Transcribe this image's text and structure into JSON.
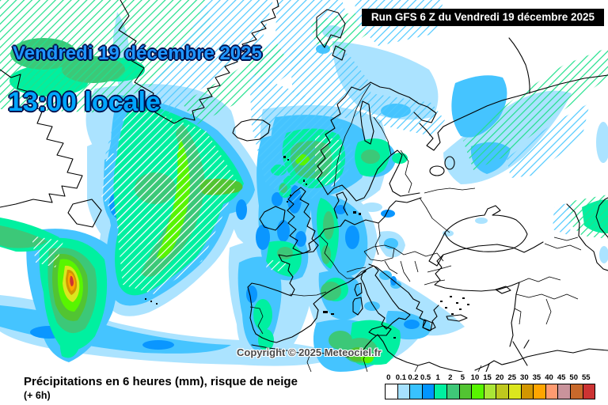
{
  "header": {
    "date_line": "Vendredi 19 décembre 2025",
    "time_line": "13:00 locale",
    "run_box": "Run GFS 6 Z du Vendredi 19 décembre 2025"
  },
  "map": {
    "copyright": "Copyright © 2025 Meteociel.fr",
    "region": "Europe / North Atlantic"
  },
  "footer": {
    "title": "Précipitations en 6 heures (mm), risque de neige",
    "subtitle": "(+ 6h)"
  },
  "legend": {
    "unit": "mm",
    "values": [
      "0",
      "0.1",
      "0.2",
      "0.5",
      "1",
      "2",
      "5",
      "10",
      "15",
      "20",
      "25",
      "30",
      "35",
      "40",
      "45",
      "50",
      "55"
    ],
    "colors": [
      "#FFFFFF",
      "#A6E1FF",
      "#38C2FF",
      "#0095FF",
      "#00F0A0",
      "#3FC878",
      "#52C432",
      "#58F500",
      "#AAE637",
      "#BFC81E",
      "#DCE61E",
      "#D29600",
      "#FFA500",
      "#FF9B70",
      "#C9939B",
      "#C8692B",
      "#CC3333"
    ]
  },
  "colors": {
    "header_date": "#1e96ff",
    "header_time": "#00a6ff",
    "run_box_bg": "#000000",
    "run_box_text": "#ffffff",
    "hatch_cyan": "#4fc9ff",
    "hatch_green": "#21e08c",
    "land_outline": "#000000"
  }
}
